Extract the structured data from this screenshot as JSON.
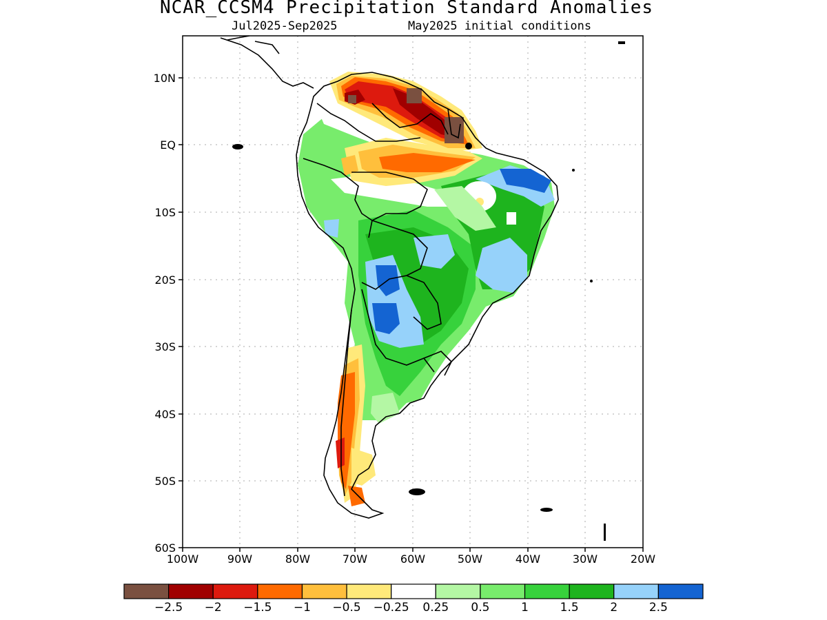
{
  "title": "NCAR_CCSM4 Precipitation Standard Anomalies",
  "subtitle_left": "Jul2025-Sep2025",
  "subtitle_right": "May2025 initial conditions",
  "lat_ticks": [
    "10N",
    "EQ",
    "10S",
    "20S",
    "30S",
    "40S",
    "50S",
    "60S"
  ],
  "lon_ticks": [
    "100W",
    "90W",
    "80W",
    "70W",
    "60W",
    "50W",
    "40W",
    "30W",
    "20W"
  ],
  "colorbar": {
    "colors": [
      "#7a5040",
      "#a00000",
      "#dd1a0e",
      "#ff6a00",
      "#ffbf3c",
      "#ffe97a",
      "#ffffff",
      "#b4f7a4",
      "#78ec6c",
      "#37d23c",
      "#1eb41e",
      "#96d2fa",
      "#1464d2"
    ],
    "labels": [
      "-2.5",
      "-2",
      "-1.5",
      "-1",
      "-0.5",
      "-0.25",
      "0.25",
      "0.5",
      "1",
      "1.5",
      "2",
      "2.5"
    ]
  }
}
